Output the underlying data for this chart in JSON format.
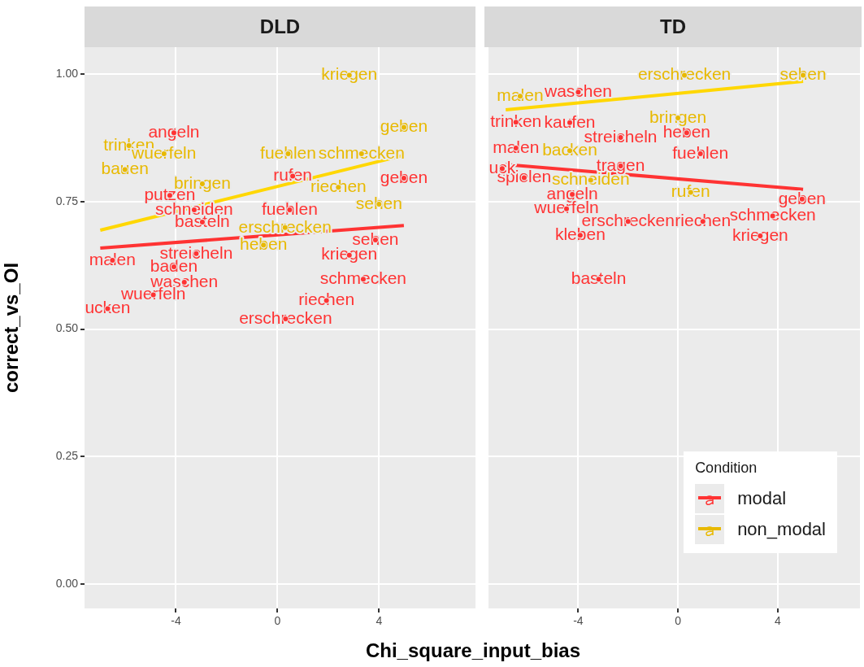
{
  "chart_data": [
    {
      "type": "scatter",
      "title": "DLD",
      "xlabel": "Chi_square_input_bias",
      "ylabel": "correct_vs_OI",
      "xlim": [
        -7.6,
        7.8
      ],
      "ylim": [
        -0.048,
        1.053
      ],
      "xticks": [
        -4,
        0,
        4
      ],
      "yticks": [
        {
          "value": 0,
          "label": "0.00"
        },
        {
          "value": 0.25,
          "label": "0.25"
        },
        {
          "value": 0.5,
          "label": "0.50"
        },
        {
          "value": 0.75,
          "label": "0.75"
        },
        {
          "value": 1,
          "label": "1.00"
        }
      ],
      "grid": true,
      "legend": false,
      "series": [
        {
          "type": "scatter",
          "marker": "circle",
          "color": "#ff3333",
          "x": [
            -4.08,
            4.98,
            0.6,
            -4.24,
            0.48,
            3.86,
            2.83,
            3.38,
            1.93,
            0.32,
            -6.69,
            -3.67,
            -4.08,
            -4.89,
            -6.5,
            -3.28,
            -2.96,
            -3.2
          ],
          "values": [
            0.885,
            0.796,
            0.8,
            0.762,
            0.734,
            0.675,
            0.645,
            0.598,
            0.556,
            0.52,
            0.54,
            0.592,
            0.622,
            0.567,
            0.635,
            0.734,
            0.71,
            0.648
          ],
          "value_labels": [
            "angeln",
            "geben",
            "rufen",
            "putzen",
            "fuehlen",
            "sehen",
            "kriegen",
            "schmecken",
            "riechen",
            "erschrecken",
            "ucken",
            "waschen",
            "baden",
            "wuerfeln",
            "malen",
            "schneiden",
            "basteln",
            "streicheln"
          ]
        },
        {
          "type": "scatter",
          "marker": "circle",
          "color": "#e8b900",
          "x": [
            2.83,
            4.98,
            3.31,
            0.42,
            -5.85,
            -4.47,
            -6.01,
            -2.96,
            2.4,
            4.0,
            -0.55,
            0.3
          ],
          "values": [
            0.998,
            0.896,
            0.844,
            0.844,
            0.86,
            0.844,
            0.813,
            0.785,
            0.778,
            0.745,
            0.665,
            0.699
          ],
          "value_labels": [
            "kriegen",
            "geben",
            "schmecken",
            "fuehlen",
            "trinken",
            "wuerfeln",
            "bauen",
            "bringen",
            "riechen",
            "sehen",
            "heben",
            "erschrecken"
          ]
        },
        {
          "type": "line",
          "color": "#ff3333",
          "x": [
            -6.98,
            4.98
          ],
          "values": [
            0.659,
            0.703
          ]
        },
        {
          "type": "line",
          "color": "#ffd700",
          "x": [
            -6.98,
            4.98
          ],
          "values": [
            0.694,
            0.841
          ]
        }
      ]
    },
    {
      "type": "scatter",
      "title": "TD",
      "xlim": [
        -7.6,
        7.3
      ],
      "ylim": [
        -0.048,
        1.053
      ],
      "xticks": [
        -4,
        0,
        4
      ],
      "yticks": [
        0,
        0.25,
        0.5,
        0.75,
        1
      ],
      "tick_labels": "x",
      "grid": true,
      "legend": "bottom right",
      "legend_title": "Condition",
      "series": [
        {
          "type": "scatter",
          "marker": "circle",
          "name": "modal",
          "color": "#ff3333",
          "x": [
            -6.5,
            -4.0,
            -4.34,
            -2.3,
            0.35,
            0.9,
            -6.5,
            -2.3,
            -6.17,
            -4.24,
            -4.47,
            -3.92,
            -3.18,
            4.98,
            3.8,
            3.3,
            -2.0,
            1.0,
            -7.05
          ],
          "values": [
            0.906,
            0.965,
            0.905,
            0.876,
            0.885,
            0.844,
            0.855,
            0.82,
            0.797,
            0.764,
            0.736,
            0.684,
            0.598,
            0.755,
            0.722,
            0.683,
            0.711,
            0.711,
            0.815
          ],
          "value_labels": [
            "trinken",
            "waschen",
            "kaufen",
            "streicheln",
            "heben",
            "fuehlen",
            "malen",
            "tragen",
            "spielen",
            "angeln",
            "wuerfeln",
            "kleben",
            "basteln",
            "geben",
            "schmecken",
            "kriegen",
            "erschrecken",
            "riechen",
            "uck"
          ]
        },
        {
          "type": "scatter",
          "marker": "circle",
          "name": "non_modal",
          "color": "#e8b900",
          "x": [
            0.26,
            5.02,
            -6.33,
            0,
            0.51,
            -3.5,
            -4.34
          ],
          "values": [
            0.998,
            0.998,
            0.957,
            0.914,
            0.768,
            0.792,
            0.85
          ],
          "value_labels": [
            "erschrecken",
            "sehen",
            "malen",
            "bringen",
            "rufen",
            "schneiden",
            "backen"
          ]
        },
        {
          "type": "line",
          "color": "#ff3333",
          "x": [
            -6.91,
            5.02
          ],
          "values": [
            0.823,
            0.774
          ]
        },
        {
          "type": "line",
          "color": "#ffd700",
          "x": [
            -6.91,
            5.02
          ],
          "values": [
            0.93,
            0.986
          ]
        }
      ]
    }
  ]
}
